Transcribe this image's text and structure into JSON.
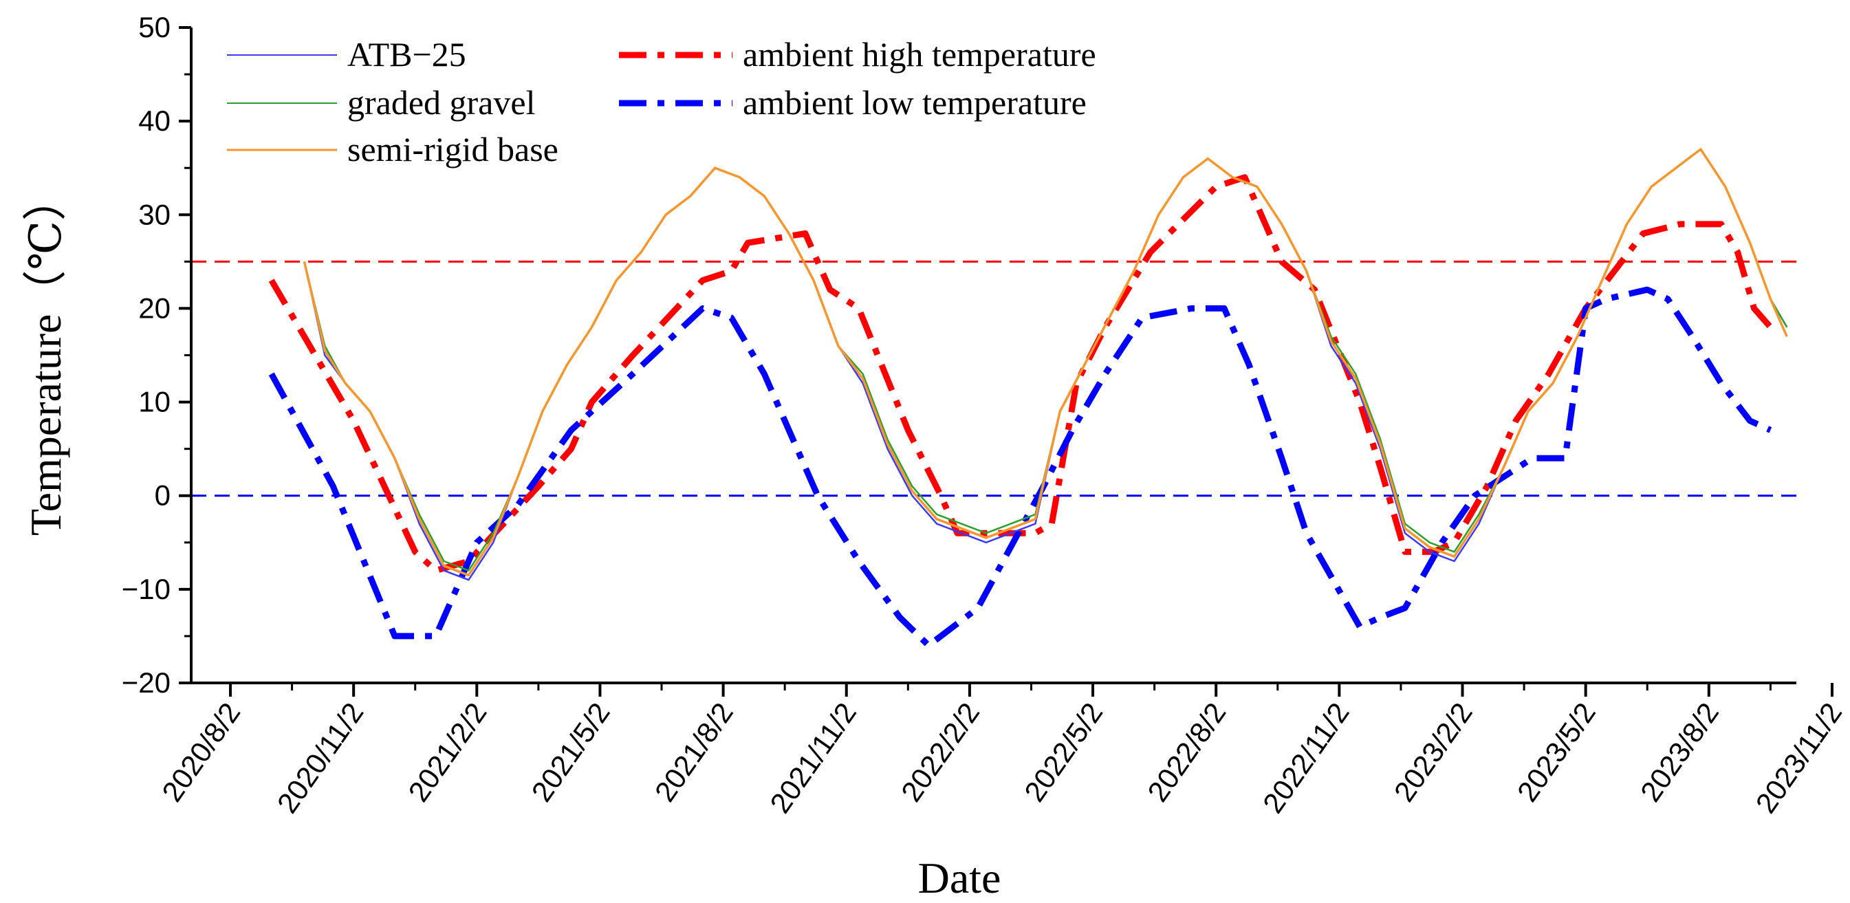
{
  "chart_data": {
    "type": "line",
    "title": "",
    "xlabel": "Date",
    "ylabel": "Temperature（℃）",
    "ylim": [
      -20,
      50
    ],
    "yticks": [
      "−20",
      "−10",
      "0",
      "10",
      "20",
      "30",
      "40",
      "50"
    ],
    "ytick_values": [
      -20,
      -10,
      0,
      10,
      20,
      30,
      40,
      50
    ],
    "xticks": [
      "2020/8/2",
      "2020/11/2",
      "2021/2/2",
      "2021/5/2",
      "2021/8/2",
      "2021/11/2",
      "2022/2/2",
      "2022/5/2",
      "2022/8/2",
      "2022/11/2",
      "2023/2/2",
      "2023/5/2",
      "2023/8/2",
      "2023/11/2"
    ],
    "xlim_months": [
      0,
      39
    ],
    "reference_lines": [
      {
        "name": "high threshold",
        "y": 25,
        "color": "#ff0000"
      },
      {
        "name": "zero line",
        "y": 0,
        "color": "#0000ff"
      }
    ],
    "colors": {
      "atb": "#3a3aff",
      "gravel": "#2ca02c",
      "semirigid": "#f5962e",
      "high": "#ff0000",
      "low": "#0000ff"
    },
    "series": [
      {
        "name": "ambient high temperature",
        "style": "dashdot",
        "x": [
          1.0,
          3.0,
          4.5,
          5.0,
          5.8,
          7.5,
          8.3,
          8.8,
          9.8,
          11.5,
          12.2,
          12.6,
          14.0,
          14.6,
          15.3,
          16.5,
          17.3,
          17.7,
          18.3,
          19.6,
          20.0,
          20.6,
          21.3,
          22.4,
          24.0,
          24.7,
          25.1,
          25.6,
          26.4,
          27.5,
          28.0,
          28.6,
          29.3,
          29.8,
          30.6,
          31.3,
          32.1,
          33.0,
          34.4,
          35.3,
          36.3,
          36.7,
          37.1,
          37.5
        ],
        "y": [
          23,
          8,
          -6,
          -8,
          -7,
          1,
          5,
          10,
          15,
          23,
          24,
          27,
          28,
          22,
          20,
          7,
          0,
          -4,
          -4,
          -4,
          -3,
          12,
          18,
          26,
          33,
          34,
          30,
          25,
          22,
          10,
          3,
          -6,
          -6,
          -5,
          1,
          8,
          13,
          20,
          28,
          29,
          29,
          26,
          20,
          18
        ]
      },
      {
        "name": "ambient low temperature",
        "style": "dashdot",
        "x": [
          1.0,
          2.5,
          4.0,
          5.0,
          6.0,
          7.0,
          8.3,
          9.8,
          11.5,
          12.2,
          13.0,
          14.3,
          15.3,
          16.3,
          17.0,
          18.2,
          19.8,
          20.5,
          21.3,
          22.2,
          23.4,
          24.2,
          24.8,
          25.6,
          26.2,
          27.5,
          28.0,
          28.6,
          29.5,
          30.3,
          31.0,
          31.7,
          32.5,
          33.0,
          33.5,
          34.5,
          35.0,
          35.6,
          36.3,
          37.0,
          37.5
        ],
        "y": [
          13,
          1,
          -15,
          -15,
          -5,
          -1,
          7,
          13,
          20,
          19,
          13,
          0,
          -7,
          -13,
          -16,
          -12,
          1,
          7,
          13,
          19,
          20,
          20,
          14,
          4,
          -4,
          -14,
          -13,
          -12,
          -5,
          0,
          2,
          4,
          4,
          20,
          21,
          22,
          21,
          17,
          12,
          8,
          7
        ]
      },
      {
        "name": "ATB−25",
        "style": "solid",
        "x": [
          1.8,
          2.3,
          2.8,
          3.4,
          4.0,
          4.6,
          5.2,
          5.8,
          6.4,
          7.0,
          7.6,
          8.2,
          8.8,
          9.4,
          10.0,
          10.6,
          11.2,
          11.8,
          12.4,
          13.0,
          13.6,
          14.2,
          14.8,
          15.4,
          16.0,
          16.6,
          17.2,
          17.8,
          18.4,
          19.0,
          19.6,
          20.2,
          20.8,
          21.4,
          22.0,
          22.6,
          23.2,
          23.8,
          24.4,
          25.0,
          25.6,
          26.2,
          26.8,
          27.4,
          28.0,
          28.6,
          29.2,
          29.8,
          30.4,
          31.0,
          31.6,
          32.2,
          32.8,
          33.4,
          34.0,
          34.6,
          35.2,
          35.8,
          36.4,
          37.0,
          37.5,
          37.9
        ],
        "y": [
          25,
          15,
          12,
          9,
          4,
          -3,
          -8,
          -9,
          -5,
          2,
          9,
          14,
          18,
          23,
          26,
          30,
          32,
          35,
          34,
          32,
          28,
          23,
          16,
          12,
          5,
          0,
          -3,
          -4,
          -5,
          -4,
          -3,
          9,
          14,
          19,
          24,
          30,
          34,
          36,
          34,
          33,
          29,
          24,
          16,
          12,
          5,
          -4,
          -6,
          -7,
          -3,
          3,
          9,
          12,
          17,
          23,
          29,
          33,
          35,
          37,
          33,
          27,
          21,
          18
        ]
      },
      {
        "name": "graded gravel",
        "style": "solid",
        "x": [
          1.8,
          2.3,
          2.8,
          3.4,
          4.0,
          4.6,
          5.2,
          5.8,
          6.4,
          7.0,
          7.6,
          8.2,
          8.8,
          9.4,
          10.0,
          10.6,
          11.2,
          11.8,
          12.4,
          13.0,
          13.6,
          14.2,
          14.8,
          15.4,
          16.0,
          16.6,
          17.2,
          17.8,
          18.4,
          19.0,
          19.6,
          20.2,
          20.8,
          21.4,
          22.0,
          22.6,
          23.2,
          23.8,
          24.4,
          25.0,
          25.6,
          26.2,
          26.8,
          27.4,
          28.0,
          28.6,
          29.2,
          29.8,
          30.4,
          31.0,
          31.6,
          32.2,
          32.8,
          33.4,
          34.0,
          34.6,
          35.2,
          35.8,
          36.4,
          37.0,
          37.5,
          37.9
        ],
        "y": [
          25,
          16,
          12,
          9,
          4,
          -2,
          -7,
          -8,
          -4,
          2,
          9,
          14,
          18,
          23,
          26,
          30,
          32,
          35,
          34,
          32,
          28,
          23,
          16,
          13,
          6,
          1,
          -2,
          -3,
          -4,
          -3,
          -2,
          9,
          14,
          19,
          24,
          30,
          34,
          36,
          34,
          33,
          29,
          24,
          17,
          13,
          6,
          -3,
          -5,
          -6,
          -2,
          3,
          9,
          12,
          17,
          23,
          29,
          33,
          35,
          37,
          33,
          27,
          21,
          18
        ]
      },
      {
        "name": "semi-rigid base",
        "style": "solid",
        "x": [
          1.8,
          2.3,
          2.8,
          3.4,
          4.0,
          4.6,
          5.2,
          5.8,
          6.4,
          7.0,
          7.6,
          8.2,
          8.8,
          9.4,
          10.0,
          10.6,
          11.2,
          11.8,
          12.4,
          13.0,
          13.6,
          14.2,
          14.8,
          15.4,
          16.0,
          16.6,
          17.2,
          17.8,
          18.4,
          19.0,
          19.6,
          20.2,
          20.8,
          21.4,
          22.0,
          22.6,
          23.2,
          23.8,
          24.4,
          25.0,
          25.6,
          26.2,
          26.8,
          27.4,
          28.0,
          28.6,
          29.2,
          29.8,
          30.4,
          31.0,
          31.6,
          32.2,
          32.8,
          33.4,
          34.0,
          34.6,
          35.2,
          35.8,
          36.4,
          37.0,
          37.5,
          37.9
        ],
        "y": [
          25,
          15.5,
          12,
          9,
          4,
          -2.5,
          -7.5,
          -8.5,
          -4.5,
          2,
          9,
          14,
          18,
          23,
          26,
          30,
          32,
          35,
          34,
          32,
          28,
          23,
          16,
          12.5,
          5.5,
          0.5,
          -2.5,
          -3.5,
          -4.5,
          -3.5,
          -2.5,
          9,
          14,
          19,
          24,
          30,
          34,
          36,
          34,
          33,
          29,
          24,
          16.5,
          12.5,
          5.5,
          -3.5,
          -5.5,
          -6.5,
          -2.5,
          3,
          9,
          12,
          17,
          23,
          29,
          33,
          35,
          37,
          33,
          27,
          21,
          17
        ]
      }
    ],
    "legend": {
      "placement": "top-left",
      "entries": [
        "ATB−25",
        "graded gravel",
        "semi-rigid base",
        "ambient high temperature",
        "ambient low temperature"
      ]
    }
  }
}
